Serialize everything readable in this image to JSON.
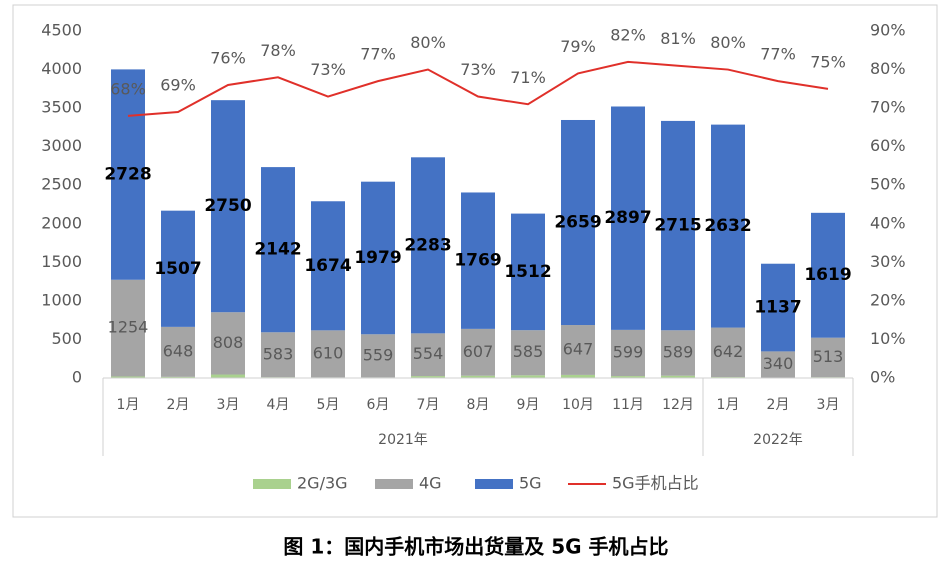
{
  "chart_data": {
    "type": "bar-line",
    "caption": "图 1：国内手机市场出货量及 5G 手机占比",
    "groups": [
      {
        "label": "2021年",
        "categories": [
          "1月",
          "2月",
          "3月",
          "4月",
          "5月",
          "6月",
          "7月",
          "8月",
          "9月",
          "10月",
          "11月",
          "12月"
        ]
      },
      {
        "label": "2022年",
        "categories": [
          "1月",
          "2月",
          "3月"
        ]
      }
    ],
    "series": [
      {
        "name": "2G/3G",
        "type": "bar",
        "color": "#a9d18e",
        "values": [
          20,
          15,
          45,
          10,
          8,
          8,
          25,
          30,
          35,
          40,
          25,
          30,
          12,
          5,
          10
        ]
      },
      {
        "name": "4G",
        "type": "bar",
        "color": "#a5a5a5",
        "values": [
          1254,
          648,
          808,
          583,
          610,
          559,
          554,
          607,
          585,
          647,
          599,
          589,
          642,
          340,
          513
        ]
      },
      {
        "name": "5G",
        "type": "bar",
        "color": "#4472c4",
        "values": [
          2728,
          1507,
          2750,
          2142,
          1674,
          1979,
          2283,
          1769,
          1512,
          2659,
          2897,
          2715,
          2632,
          1137,
          1619
        ]
      },
      {
        "name": "5G手机占比",
        "type": "line",
        "axis": "y2",
        "color": "#e0302a",
        "values": [
          68,
          69,
          76,
          78,
          73,
          77,
          80,
          73,
          71,
          79,
          82,
          81,
          80,
          77,
          75
        ],
        "value_labels": [
          "68%",
          "69%",
          "76%",
          "78%",
          "73%",
          "77%",
          "80%",
          "73%",
          "71%",
          "79%",
          "82%",
          "81%",
          "80%",
          "77%",
          "75%"
        ]
      }
    ],
    "ylim": [
      0,
      4500
    ],
    "yticks": [
      0,
      500,
      1000,
      1500,
      2000,
      2500,
      3000,
      3500,
      4000,
      4500
    ],
    "y2lim": [
      0,
      90
    ],
    "y2ticks": [
      {
        "value": 0,
        "label": "0%"
      },
      {
        "value": 10,
        "label": "10%"
      },
      {
        "value": 20,
        "label": "20%"
      },
      {
        "value": 30,
        "label": "30%"
      },
      {
        "value": 40,
        "label": "40%"
      },
      {
        "value": 50,
        "label": "50%"
      },
      {
        "value": 60,
        "label": "60%"
      },
      {
        "value": 70,
        "label": "70%"
      },
      {
        "value": 80,
        "label": "80%"
      },
      {
        "value": 90,
        "label": "90%"
      }
    ],
    "legend": "bottom"
  }
}
